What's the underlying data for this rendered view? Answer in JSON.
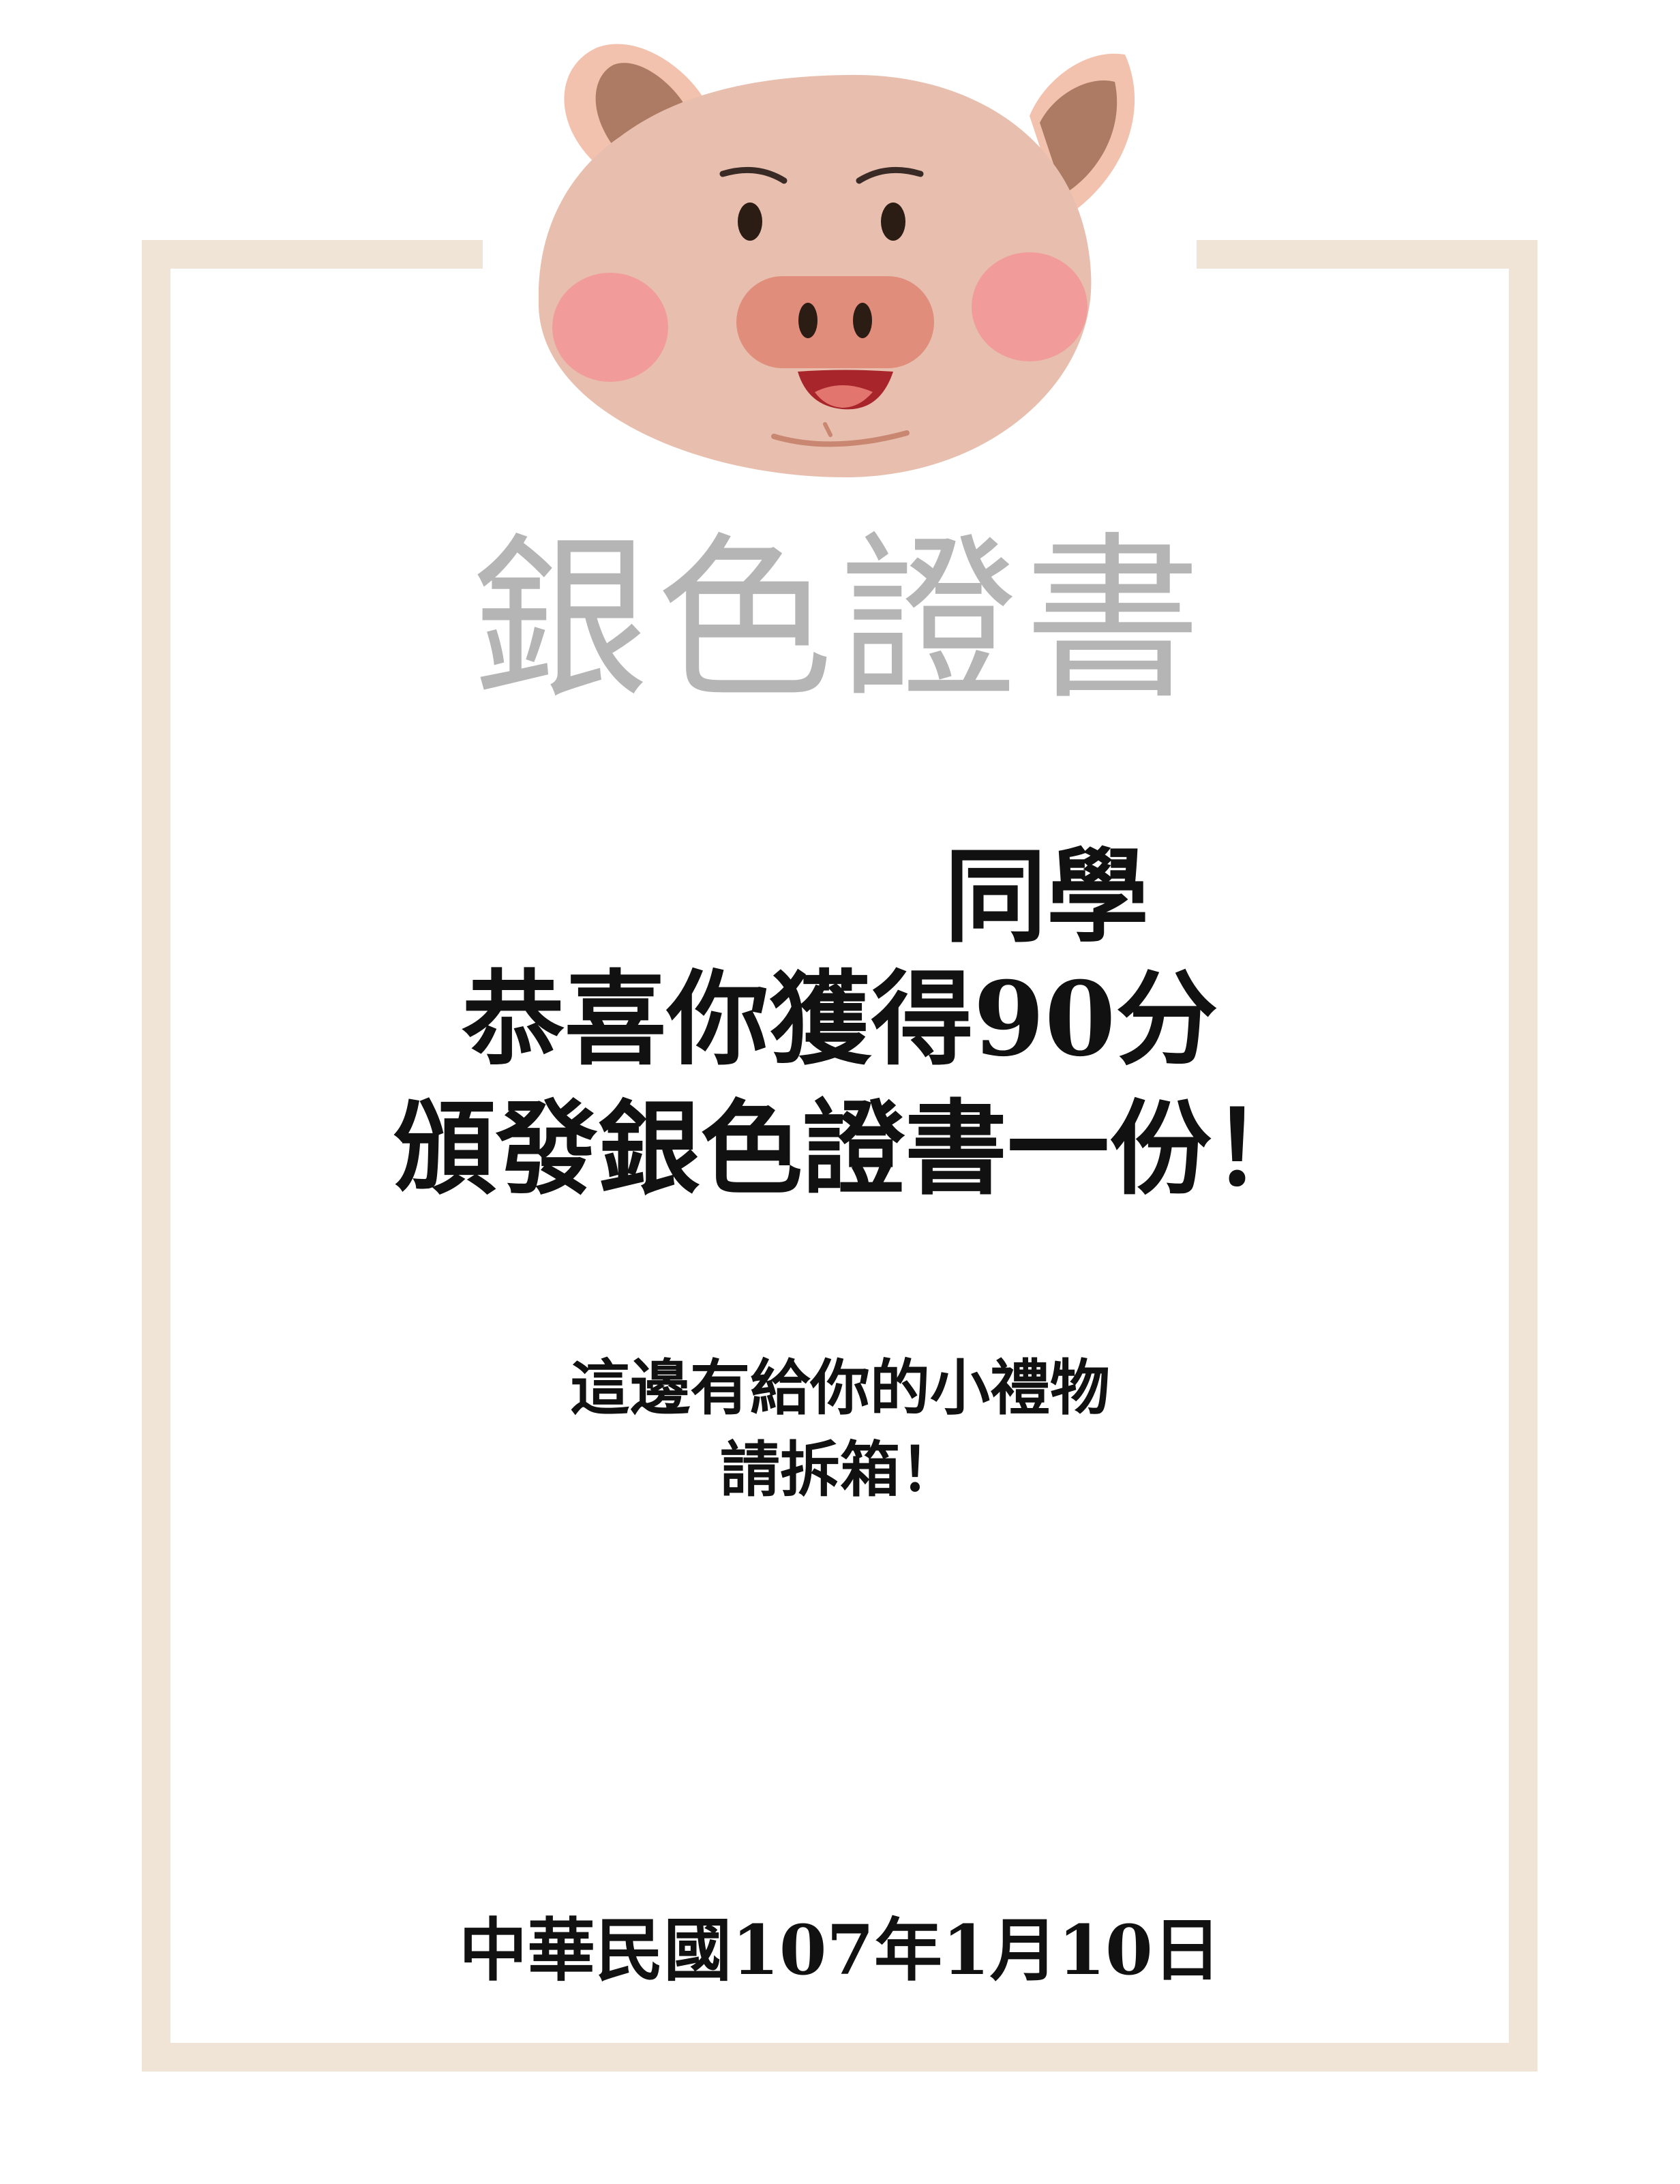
{
  "colors": {
    "frame": "#efe4d6",
    "title": "#b5b5b5",
    "text": "#111111",
    "pig_face": "#e8bfae",
    "pig_ear_inner": "#ad7a63",
    "pig_snout": "#e08d7c",
    "pig_cheek": "#f29597",
    "pig_mouth": "#a8252b"
  },
  "decoration": {
    "mascot_icon": "pig-face-icon"
  },
  "certificate": {
    "title": "銀色證書",
    "classmate": "同學",
    "congrats": "恭喜你獲得90分",
    "award": "頒發銀色證書一份！",
    "gift_line": "這邊有給你的小禮物",
    "unbox_line": "請拆箱！",
    "date": "中華民國107年1月10日"
  }
}
